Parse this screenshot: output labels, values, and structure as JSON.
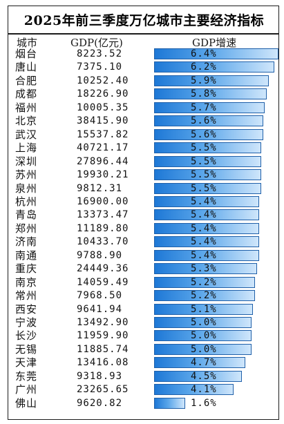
{
  "title": "2025年前三季度万亿城市主要经济指标",
  "headers": {
    "city": "城市",
    "gdp": "GDP(亿元)",
    "growth": "GDP增速"
  },
  "chart_data": {
    "type": "bar",
    "title": "2025年前三季度万亿城市主要经济指标",
    "xlabel": "",
    "ylabel": "GDP增速",
    "categories": [
      "烟台",
      "唐山",
      "合肥",
      "成都",
      "福州",
      "北京",
      "武汉",
      "上海",
      "深圳",
      "苏州",
      "泉州",
      "杭州",
      "青岛",
      "郑州",
      "济南",
      "南通",
      "重庆",
      "南京",
      "常州",
      "西安",
      "宁波",
      "长沙",
      "无锡",
      "天津",
      "东莞",
      "广州",
      "佛山"
    ],
    "gdp": [
      "8223.52",
      "7375.10",
      "10252.40",
      "18226.90",
      "10005.35",
      "38415.90",
      "15537.82",
      "40721.17",
      "27896.44",
      "19930.21",
      "9812.31",
      "16900.00",
      "13373.47",
      "11189.80",
      "10433.70",
      "9788.90",
      "24449.36",
      "14059.49",
      "7968.50",
      "9641.94",
      "13492.90",
      "11959.90",
      "11885.74",
      "13416.08",
      "9318.93",
      "23265.65",
      "9620.82"
    ],
    "values": [
      6.4,
      6.2,
      5.9,
      5.8,
      5.7,
      5.6,
      5.6,
      5.5,
      5.5,
      5.5,
      5.5,
      5.4,
      5.4,
      5.4,
      5.4,
      5.4,
      5.3,
      5.2,
      5.2,
      5.1,
      5.0,
      5.0,
      5.0,
      4.7,
      4.5,
      4.1,
      1.6
    ],
    "value_labels": [
      "6.4%",
      "6.2%",
      "5.9%",
      "5.8%",
      "5.7%",
      "5.6%",
      "5.6%",
      "5.5%",
      "5.5%",
      "5.5%",
      "5.5%",
      "5.4%",
      "5.4%",
      "5.4%",
      "5.4%",
      "5.4%",
      "5.3%",
      "5.2%",
      "5.2%",
      "5.1%",
      "5.0%",
      "5.0%",
      "5.0%",
      "4.7%",
      "4.5%",
      "4.1%",
      "1.6%"
    ],
    "ylim": [
      0,
      6.4
    ],
    "grid": false,
    "bar_color": "#1e78d6"
  }
}
